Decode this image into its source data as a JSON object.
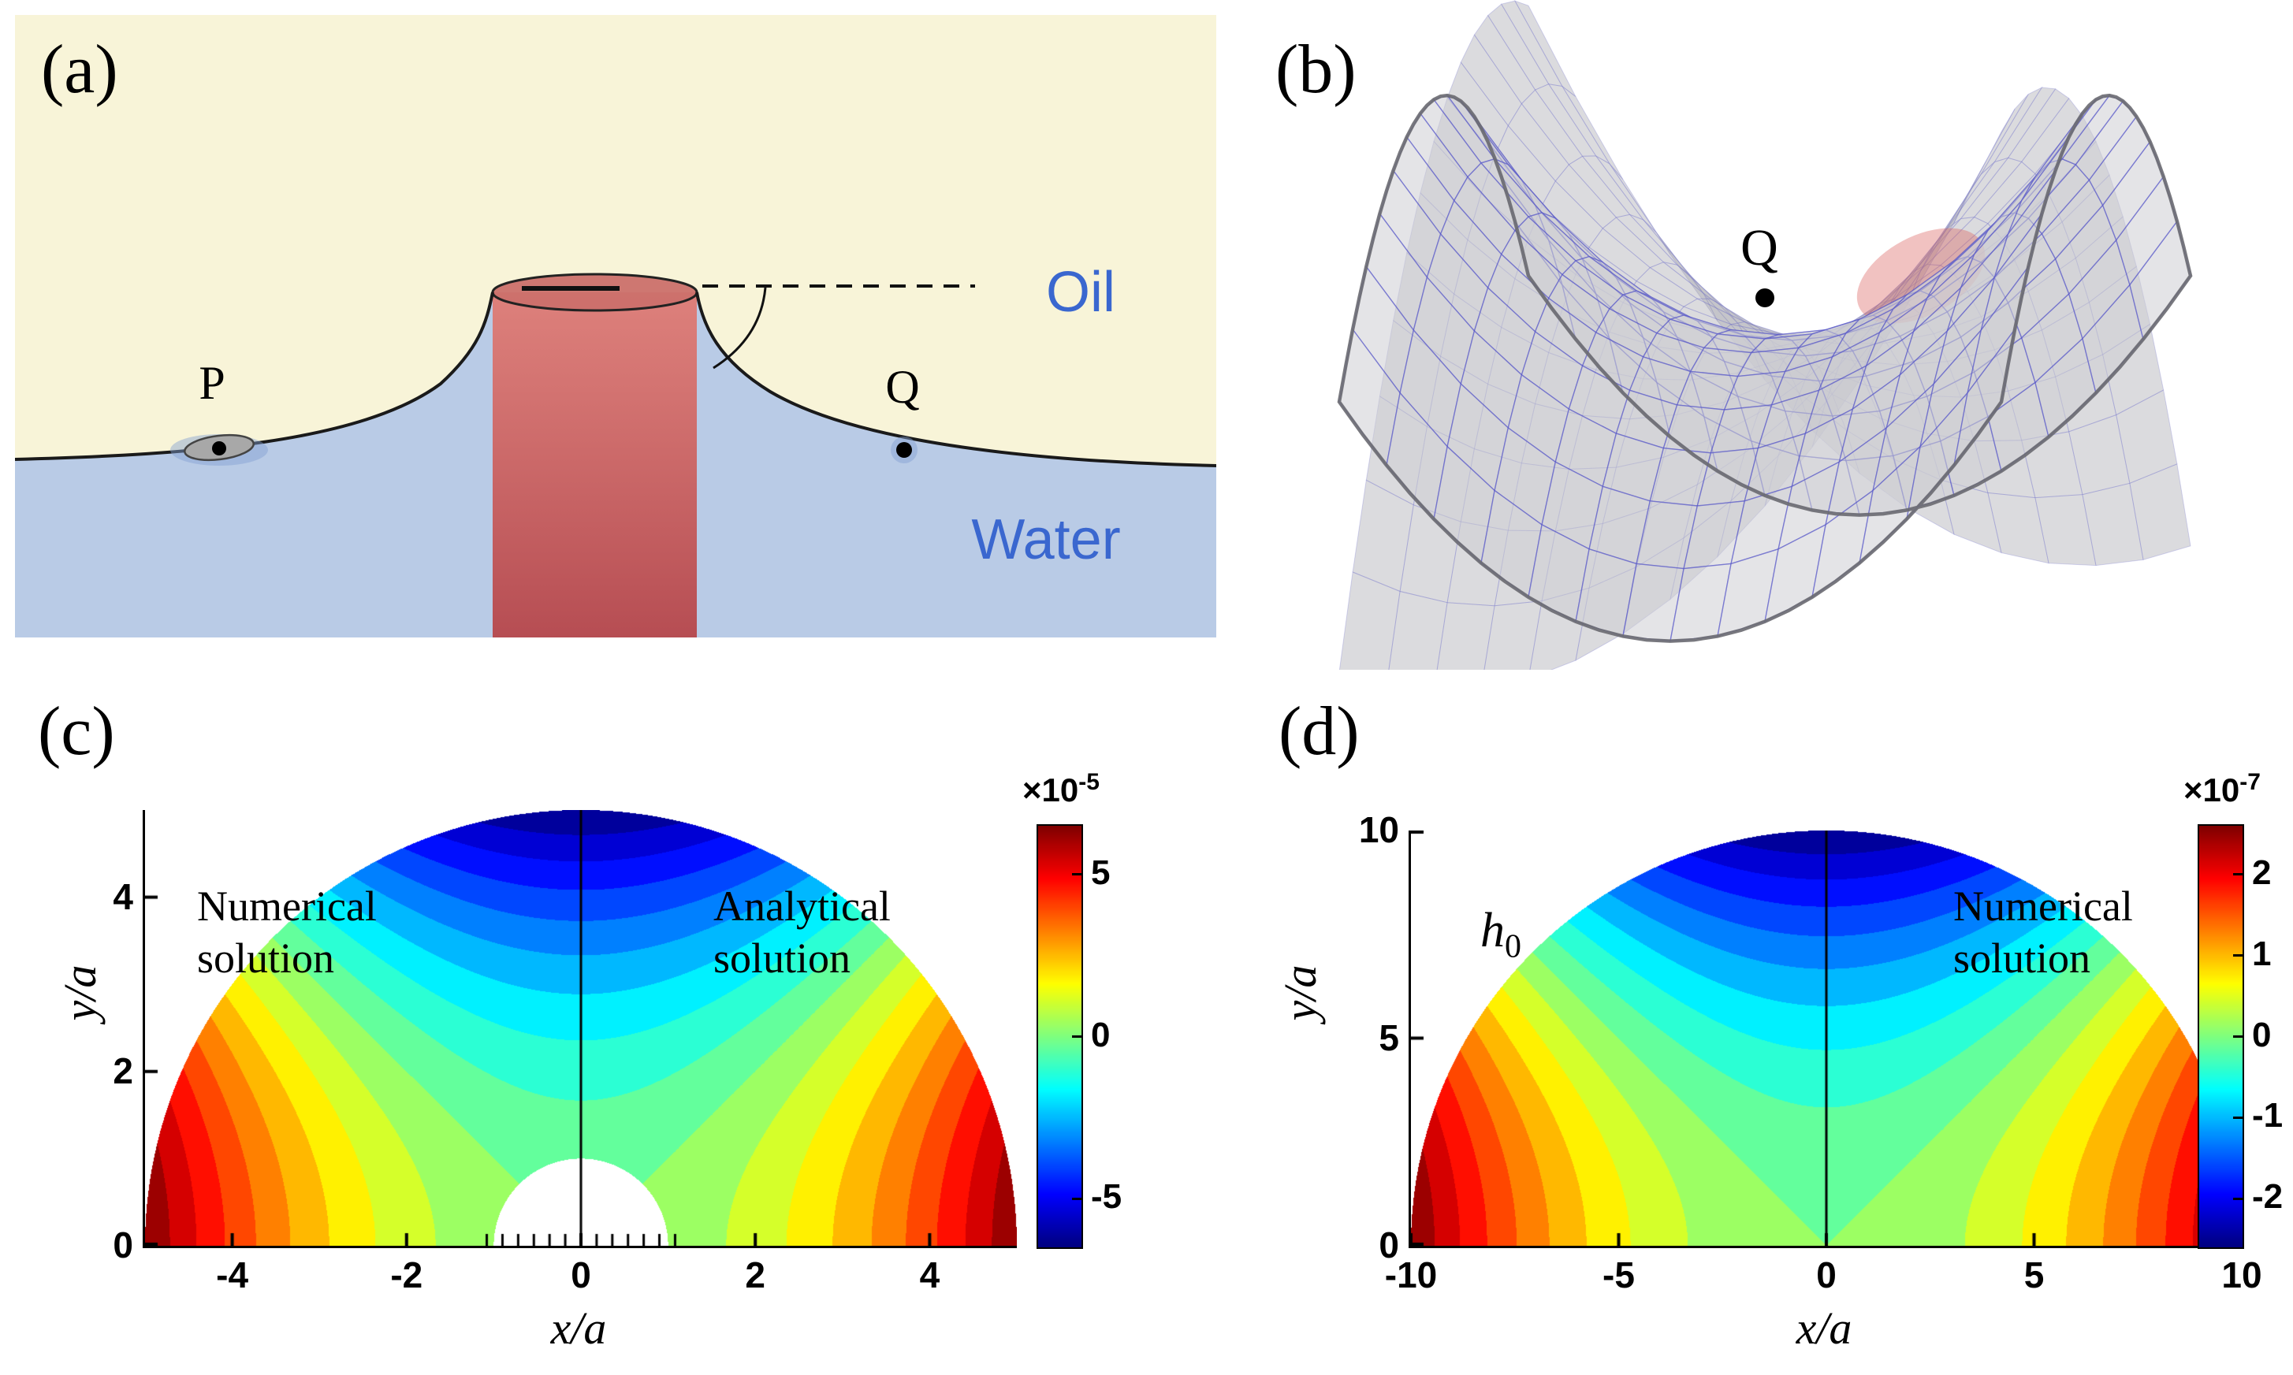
{
  "figure": {
    "background": "#ffffff"
  },
  "panels": {
    "a": {
      "label": "(a)",
      "oil_label": "Oil",
      "water_label": "Water",
      "point_p_label": "P",
      "point_q_label": "Q",
      "colors": {
        "oil": "#f8f4d8",
        "water": "#b9cbe6",
        "pillar": "#d84e4a",
        "text_blue": "#3a67cf"
      }
    },
    "b": {
      "label": "(b)",
      "point_q_label": "Q"
    },
    "c": {
      "label": "(c)"
    },
    "d": {
      "label": "(d)"
    }
  },
  "chart_data": [
    {
      "id": "panel-c",
      "type": "heatmap",
      "subtype": "filled-contour-half-disc",
      "xlabel": "x/a",
      "ylabel": "y/a",
      "xlim": [
        -5,
        5
      ],
      "ylim": [
        0,
        5
      ],
      "xticks": [
        -4,
        -2,
        0,
        2,
        4
      ],
      "yticks": [
        0,
        2,
        4
      ],
      "domain": {
        "shape": "half-disc",
        "outer_radius": 5,
        "inner_radius": 1
      },
      "field": {
        "pattern": "quadrupole_cos2theta",
        "amplitude": 6.5e-05
      },
      "levels": 18,
      "colormap": "jet",
      "divider_at_x": 0,
      "annotations": {
        "left": {
          "line1": "Numerical",
          "line2": "solution"
        },
        "right": {
          "line1": "Analytical",
          "line2": "solution"
        }
      },
      "colorbar": {
        "prefix": "×10",
        "exponent": "-5",
        "ticks": [
          5,
          0,
          -5
        ],
        "vmin": -6.5,
        "vmax": 6.5
      }
    },
    {
      "id": "panel-d",
      "type": "heatmap",
      "subtype": "filled-contour-half-disc",
      "xlabel": "x/a",
      "ylabel": "y/a",
      "xlim": [
        -10,
        10
      ],
      "ylim": [
        0,
        10
      ],
      "xticks": [
        -10,
        -5,
        0,
        5,
        10
      ],
      "yticks": [
        0,
        5,
        10
      ],
      "domain": {
        "shape": "half-disc",
        "outer_radius": 10,
        "inner_radius": 0
      },
      "field": {
        "pattern": "quadrupole_cos2theta",
        "amplitude": 2.6e-07
      },
      "levels": 18,
      "colormap": "jet",
      "divider_at_x": 0,
      "annotations": {
        "left": {
          "math_base": "h",
          "math_sub": "0"
        },
        "right": {
          "line1": "Numerical",
          "line2": "solution"
        }
      },
      "colorbar": {
        "prefix": "×10",
        "exponent": "-7",
        "ticks": [
          2,
          1,
          0,
          -1,
          -2
        ],
        "vmin": -2.6,
        "vmax": 2.6
      }
    }
  ]
}
